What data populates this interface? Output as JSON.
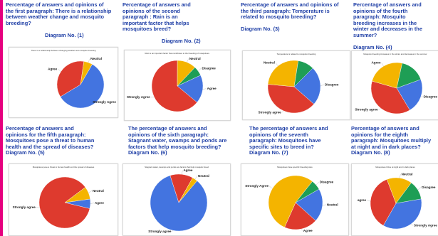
{
  "colors": {
    "blue": "#4374e0",
    "red": "#de3a2e",
    "yellow": "#f4b400",
    "green": "#1e9e55",
    "caption": "#1f3fa6",
    "accent": "#e6007e"
  },
  "panels": [
    {
      "caption": "Percentage of answers and opinions of\nthe first paragraph: There is a relationship\nbetween weather change and mosquito\nbreeding?",
      "diagram": "Diagram No. (1)"
    },
    {
      "caption": "Percentage of answers and\nopinions of the second\nparagraph : Rain is an\nimportant factor that helps\nmosquitoes breed?",
      "diagram": "Diagram No. (2)"
    },
    {
      "caption": "Percentage of answers and opinions of\nthe third paragraph: Temperature is\nrelated to mosquito breeding?",
      "diagram": "Diagram No. (3)"
    },
    {
      "caption": "Percentage of answers and\nopinions of the fourth\nparagraph: Mosquito\nbreeding increases in the\nwinter and decreases in the\nsummer?",
      "diagram": "Diagram No. (4)"
    },
    {
      "caption": "Percentage of answers and\nopinions for the fifth paragraph:\nMosquitoes pose a threat to human\nhealth and the spread of diseases?",
      "diagram": "Diagram No. (5)"
    },
    {
      "caption": "The percentage of answers and\nopinions of the sixth paragraph:\nStagnant water, swamps and ponds are\nfactors that help mosquito breeding?",
      "diagram": "Diagram No. (6)"
    },
    {
      "caption": "The percentage of answers and\nopinions of the seventh\nparagraph: Mosquitoes have\nspecific sites to breed in?",
      "diagram": "Diagram No. (7)"
    },
    {
      "caption": "Percentage of answers and\nopinions for the eighth\nparagraph: Mosquitoes multiply\nat night and in dark places?",
      "diagram": "Diagram No. (8)"
    }
  ],
  "chart_data": [
    {
      "type": "pie",
      "title": "There is a relationship between changing weather and mosquito breeding",
      "slices": [
        {
          "label": "Strongly Agree",
          "value": 58,
          "color": "#4374e0"
        },
        {
          "label": "Agree",
          "value": 36,
          "color": "#de3a2e"
        },
        {
          "label": "Neutral",
          "value": 6,
          "color": "#f4b400"
        }
      ]
    },
    {
      "type": "pie",
      "title": "Rain is an important factor that contributes to the breeding of mosquitoes.",
      "slices": [
        {
          "label": "Agree",
          "value": 18,
          "color": "#4374e0"
        },
        {
          "label": "Strongly Agree",
          "value": 64,
          "color": "#de3a2e"
        },
        {
          "label": "Neutral",
          "value": 12,
          "color": "#f4b400"
        },
        {
          "label": "Disagree",
          "value": 6,
          "color": "#1e9e55"
        }
      ]
    },
    {
      "type": "pie",
      "title": "Temperature is related to mosquito breeding",
      "slices": [
        {
          "label": "Disagree",
          "value": 24,
          "color": "#4374e0"
        },
        {
          "label": "Strongly agree",
          "value": 40,
          "color": "#de3a2e"
        },
        {
          "label": "Neutral",
          "value": 26,
          "color": "#f4b400"
        },
        {
          "label": "",
          "value": 10,
          "color": "#1e9e55"
        }
      ]
    },
    {
      "type": "pie",
      "title": "Mosquito breeding increases in the winter and decreases in the summer",
      "slices": [
        {
          "label": "Disagree",
          "value": 22,
          "color": "#4374e0"
        },
        {
          "label": "Strongly agree",
          "value": 38,
          "color": "#de3a2e"
        },
        {
          "label": "Agree",
          "value": 24,
          "color": "#f4b400"
        },
        {
          "label": "",
          "value": 16,
          "color": "#1e9e55"
        }
      ]
    },
    {
      "type": "pie",
      "title": "Mosquitoes pose a threat to human health and the spread of diseases",
      "slices": [
        {
          "label": "Agree",
          "value": 6,
          "color": "#4374e0"
        },
        {
          "label": "Strongly agree",
          "value": 86,
          "color": "#de3a2e"
        },
        {
          "label": "Neutral",
          "value": 8,
          "color": "#f4b400"
        }
      ]
    },
    {
      "type": "pie",
      "title": "Stagnant water, swamps and ponds are factors that help mosquito breed",
      "slices": [
        {
          "label": "Strongly agree",
          "value": 84,
          "color": "#4374e0"
        },
        {
          "label": "Agree",
          "value": 13,
          "color": "#de3a2e"
        },
        {
          "label": "Neutral",
          "value": 3,
          "color": "#f4b400"
        }
      ]
    },
    {
      "type": "pie",
      "title": "Mosquitoes have specific breeding sites",
      "slices": [
        {
          "label": "Neutral",
          "value": 20,
          "color": "#4374e0"
        },
        {
          "label": "Agree",
          "value": 20,
          "color": "#de3a2e"
        },
        {
          "label": "Strongly Agree",
          "value": 54,
          "color": "#f4b400"
        },
        {
          "label": "Disagree",
          "value": 6,
          "color": "#1e9e55"
        }
      ]
    },
    {
      "type": "pie",
      "title": "Mosquitoes thrive at night and in dark places",
      "slices": [
        {
          "label": "Strongly Agree",
          "value": 36,
          "color": "#4374e0"
        },
        {
          "label": "agree",
          "value": 36,
          "color": "#de3a2e"
        },
        {
          "label": "Neutral",
          "value": 16,
          "color": "#f4b400"
        },
        {
          "label": "Disagree",
          "value": 12,
          "color": "#1e9e55"
        }
      ]
    }
  ]
}
